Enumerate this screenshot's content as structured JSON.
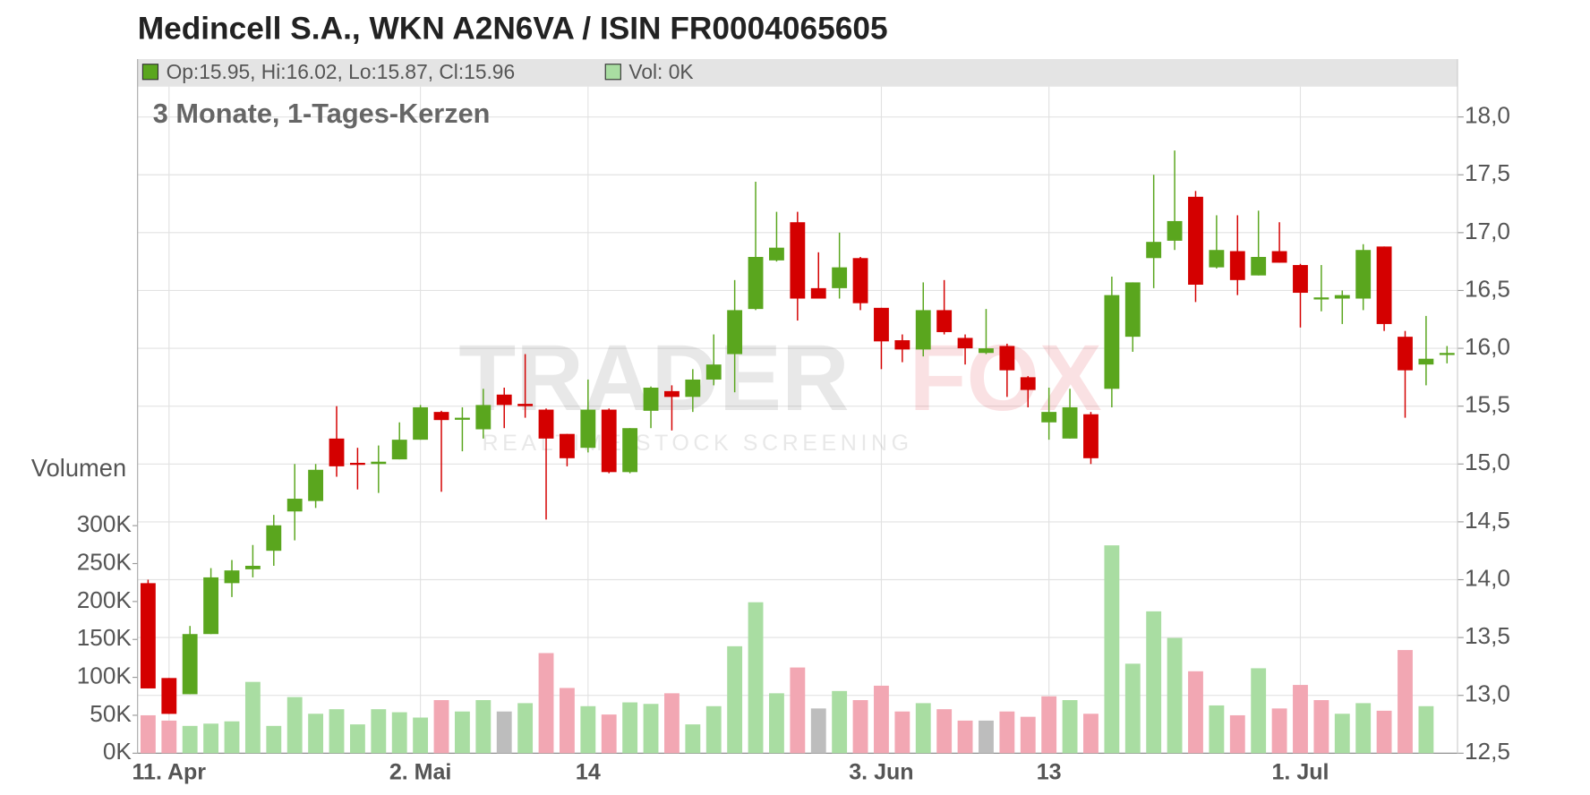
{
  "chart_data": {
    "type": "candlestick",
    "title": "Medincell S.A., WKN A2N6VA / ISIN FR0004065605",
    "subtitle": "3 Monate, 1-Tages-Kerzen",
    "info": "Op:15.95, Hi:16.02, Lo:15.87, Cl:15.96",
    "volume_info": "Vol: 0K",
    "watermark": [
      "TRADER",
      "FOX"
    ],
    "watermark_sub": "REALTIME STOCK SCREENING",
    "up_color": "#5aa61e",
    "down_color": "#d40000",
    "categories": [
      null,
      "11. Apr",
      null,
      null,
      null,
      null,
      null,
      null,
      null,
      null,
      null,
      null,
      null,
      "2. Mai",
      null,
      null,
      null,
      null,
      null,
      null,
      null,
      "14",
      null,
      null,
      null,
      null,
      null,
      null,
      null,
      null,
      null,
      null,
      null,
      null,
      null,
      "3. Jun",
      null,
      null,
      null,
      null,
      null,
      null,
      null,
      "13",
      null,
      null,
      null,
      null,
      null,
      null,
      null,
      null,
      null,
      null,
      null,
      "1. Jul",
      null,
      null,
      null,
      null,
      null,
      null,
      null
    ],
    "open": [
      13.97,
      13.15,
      13.01,
      13.53,
      13.97,
      14.09,
      14.25,
      14.59,
      14.68,
      15.22,
      15.01,
      15.0,
      15.04,
      15.21,
      15.45,
      15.39,
      15.3,
      15.6,
      15.52,
      15.47,
      15.26,
      15.14,
      15.47,
      14.93,
      15.46,
      15.63,
      15.58,
      15.73,
      15.95,
      16.34,
      16.76,
      17.09,
      16.52,
      16.52,
      16.78,
      16.35,
      16.07,
      15.99,
      16.33,
      16.09,
      15.96,
      16.02,
      15.75,
      15.36,
      15.22,
      15.43,
      15.65,
      16.1,
      16.78,
      16.93,
      17.31,
      16.7,
      16.84,
      16.63,
      16.84,
      16.72,
      16.43,
      16.43,
      16.43,
      16.88,
      16.1,
      15.86,
      15.95
    ],
    "high": [
      14.0,
      13.15,
      13.6,
      14.1,
      14.17,
      14.3,
      14.56,
      15.0,
      15.0,
      15.5,
      15.14,
      15.16,
      15.36,
      15.51,
      15.46,
      15.49,
      15.65,
      15.66,
      15.95,
      15.48,
      15.26,
      15.73,
      15.48,
      15.31,
      15.67,
      15.68,
      15.82,
      16.12,
      16.59,
      17.44,
      17.18,
      17.18,
      16.83,
      17.0,
      16.79,
      16.35,
      16.12,
      16.57,
      16.59,
      16.12,
      16.34,
      16.04,
      15.76,
      15.66,
      15.65,
      15.45,
      16.62,
      16.57,
      17.5,
      17.71,
      17.36,
      17.15,
      17.15,
      17.19,
      17.09,
      16.73,
      16.72,
      16.5,
      16.9,
      16.88,
      16.15,
      16.28,
      16.02
    ],
    "low": [
      13.06,
      12.84,
      13.01,
      13.53,
      13.85,
      14.02,
      14.12,
      14.34,
      14.62,
      14.89,
      14.78,
      14.75,
      15.04,
      15.21,
      14.76,
      15.11,
      15.22,
      15.31,
      15.4,
      14.52,
      14.98,
      15.1,
      14.92,
      14.92,
      15.31,
      15.29,
      15.45,
      15.68,
      15.62,
      16.33,
      16.75,
      16.24,
      16.43,
      16.43,
      16.33,
      15.82,
      15.88,
      15.93,
      16.12,
      15.86,
      15.95,
      15.58,
      15.49,
      15.21,
      15.22,
      15.0,
      15.49,
      15.97,
      16.52,
      16.85,
      16.4,
      16.69,
      16.46,
      16.63,
      16.74,
      16.18,
      16.32,
      16.21,
      16.33,
      16.15,
      15.4,
      15.68,
      15.87
    ],
    "close": [
      13.06,
      12.84,
      13.53,
      14.02,
      14.08,
      14.12,
      14.47,
      14.7,
      14.95,
      14.98,
      15.0,
      15.02,
      15.21,
      15.49,
      15.38,
      15.4,
      15.51,
      15.51,
      15.5,
      15.22,
      15.05,
      15.47,
      14.93,
      15.31,
      15.66,
      15.58,
      15.73,
      15.86,
      16.33,
      16.79,
      16.87,
      16.43,
      16.43,
      16.7,
      16.39,
      16.06,
      15.99,
      16.33,
      16.14,
      16.0,
      16.0,
      15.81,
      15.64,
      15.45,
      15.49,
      15.05,
      16.46,
      16.57,
      16.92,
      17.1,
      16.55,
      16.85,
      16.59,
      16.79,
      16.74,
      16.48,
      16.44,
      16.46,
      16.85,
      16.21,
      15.81,
      15.91,
      15.96
    ],
    "ylim": [
      12.5,
      18.5
    ],
    "yticks": [
      {
        "value": 12.5,
        "label": "12,5"
      },
      {
        "value": 13,
        "label": "13,0"
      },
      {
        "value": 13.5,
        "label": "13,5"
      },
      {
        "value": 14,
        "label": "14,0"
      },
      {
        "value": 14.5,
        "label": "14,5"
      },
      {
        "value": 15,
        "label": "15,0"
      },
      {
        "value": 15.5,
        "label": "15,5"
      },
      {
        "value": 16,
        "label": "16,0"
      },
      {
        "value": 16.5,
        "label": "16,5"
      },
      {
        "value": 17,
        "label": "17,0"
      },
      {
        "value": 17.5,
        "label": "17,5"
      },
      {
        "value": 18,
        "label": "18,0"
      }
    ],
    "volume": {
      "label": "Volumen",
      "values": [
        50000,
        43000,
        36000,
        39000,
        42000,
        94000,
        36000,
        74000,
        52000,
        58000,
        38000,
        58000,
        54000,
        47000,
        70000,
        55000,
        70000,
        55000,
        66000,
        132000,
        86000,
        62000,
        51000,
        67000,
        65000,
        79000,
        38000,
        62000,
        141000,
        199000,
        79000,
        113000,
        59000,
        82000,
        70000,
        89000,
        55000,
        66000,
        58000,
        43000,
        43000,
        55000,
        48000,
        75000,
        70000,
        52000,
        274000,
        118000,
        187000,
        152000,
        108000,
        63000,
        50000,
        112000,
        59000,
        90000,
        70000,
        52000,
        66000,
        56000,
        136000,
        62000,
        0
      ],
      "colors": [
        "#f2a7b3",
        "#f2a7b3",
        "#a9dda2",
        "#a9dda2",
        "#a9dda2",
        "#a9dda2",
        "#a9dda2",
        "#a9dda2",
        "#a9dda2",
        "#a9dda2",
        "#a9dda2",
        "#a9dda2",
        "#a9dda2",
        "#a9dda2",
        "#f2a7b3",
        "#a9dda2",
        "#a9dda2",
        "#bdbdbd",
        "#a9dda2",
        "#f2a7b3",
        "#f2a7b3",
        "#a9dda2",
        "#f2a7b3",
        "#a9dda2",
        "#a9dda2",
        "#f2a7b3",
        "#a9dda2",
        "#a9dda2",
        "#a9dda2",
        "#a9dda2",
        "#a9dda2",
        "#f2a7b3",
        "#bdbdbd",
        "#a9dda2",
        "#f2a7b3",
        "#f2a7b3",
        "#f2a7b3",
        "#a9dda2",
        "#f2a7b3",
        "#f2a7b3",
        "#bdbdbd",
        "#f2a7b3",
        "#f2a7b3",
        "#f2a7b3",
        "#a9dda2",
        "#f2a7b3",
        "#a9dda2",
        "#a9dda2",
        "#a9dda2",
        "#a9dda2",
        "#f2a7b3",
        "#a9dda2",
        "#f2a7b3",
        "#a9dda2",
        "#f2a7b3",
        "#f2a7b3",
        "#f2a7b3",
        "#a9dda2",
        "#a9dda2",
        "#f2a7b3",
        "#f2a7b3",
        "#a9dda2",
        "#a9dda2"
      ],
      "ylim": [
        0,
        915000
      ],
      "yticks": [
        {
          "value": 0,
          "label": "0K"
        },
        {
          "value": 50000,
          "label": "50K"
        },
        {
          "value": 100000,
          "label": "100K"
        },
        {
          "value": 150000,
          "label": "150K"
        },
        {
          "value": 200000,
          "label": "200K"
        },
        {
          "value": 250000,
          "label": "250K"
        },
        {
          "value": 300000,
          "label": "300K"
        }
      ]
    },
    "grid": true
  }
}
